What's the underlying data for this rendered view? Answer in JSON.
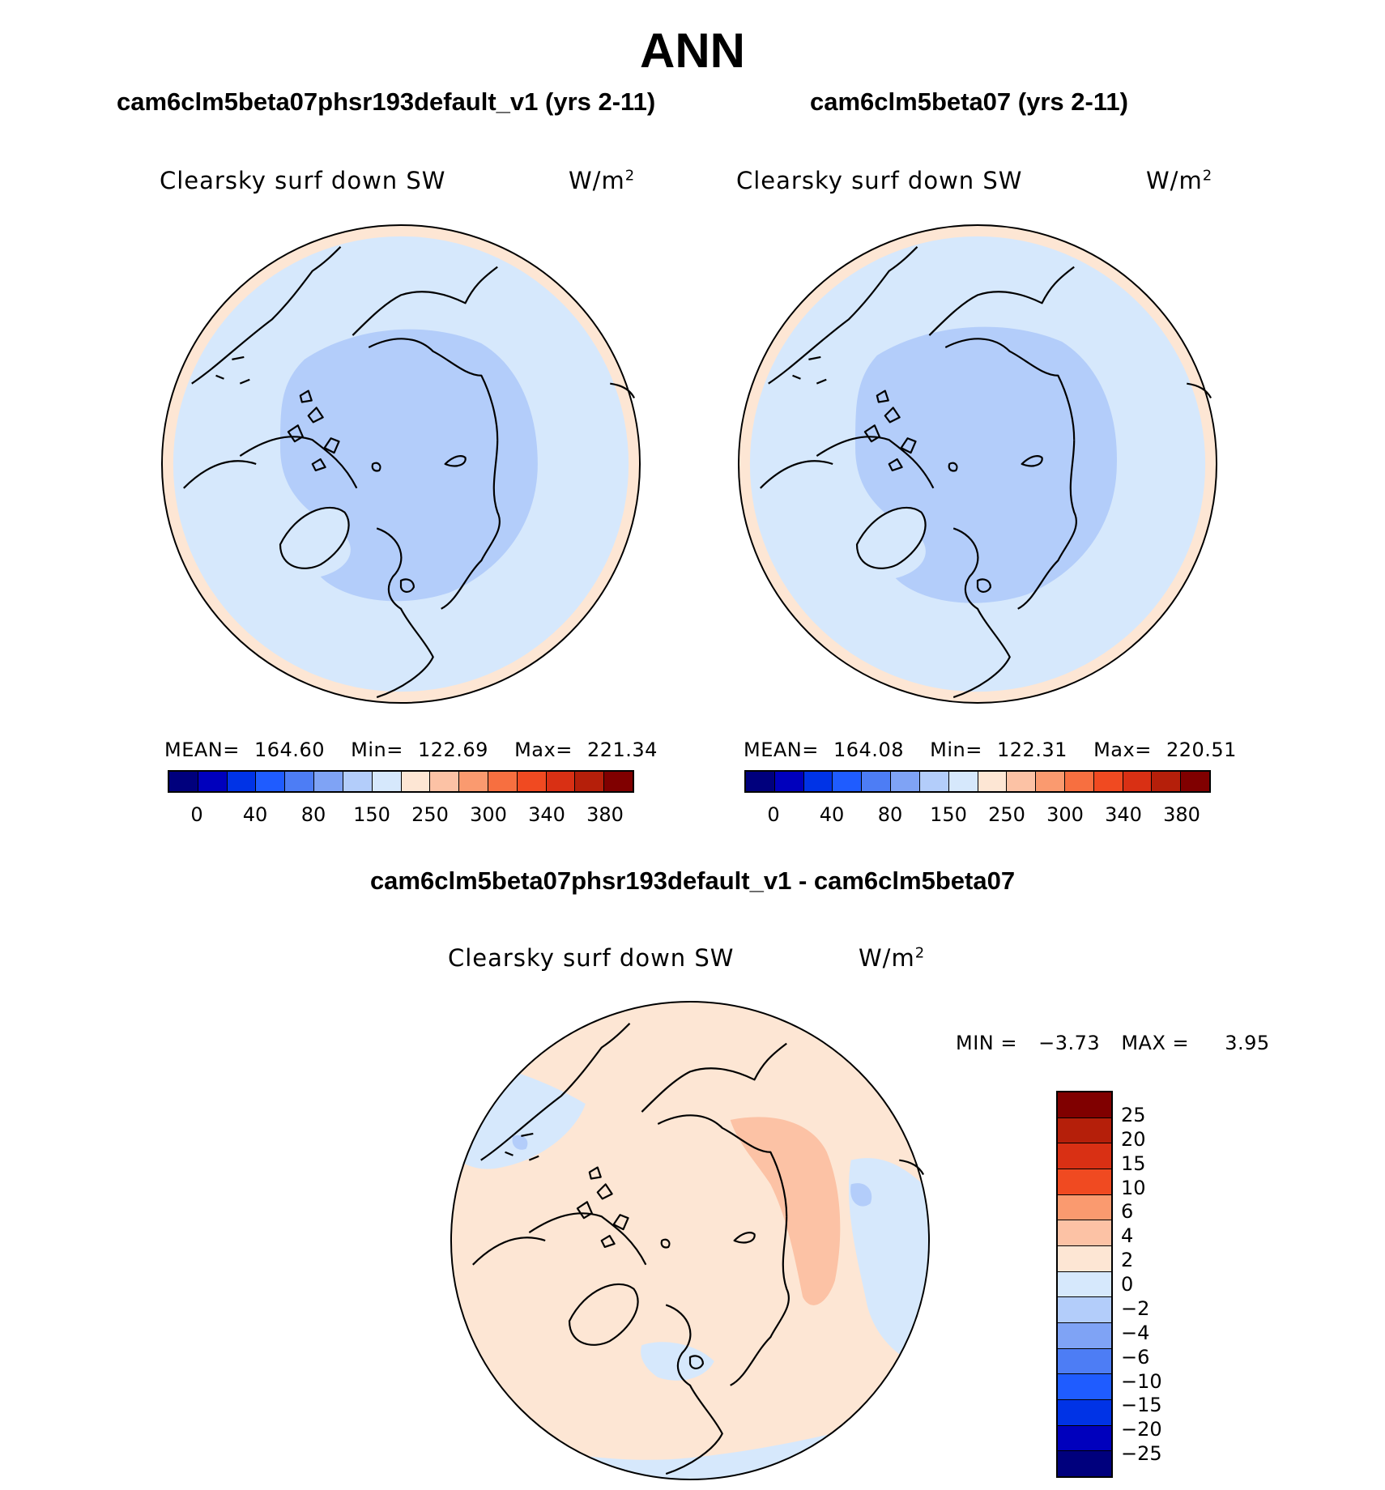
{
  "title": "ANN",
  "colors": {
    "abs_scale": [
      "#00007d",
      "#0000bd",
      "#0033e6",
      "#1f5cff",
      "#4d7df5",
      "#7fa3f5",
      "#b3cdfa",
      "#d6e8fc",
      "#fde6d4",
      "#fcc2a5",
      "#fa9a6f",
      "#f76f40",
      "#f04a21",
      "#d93014",
      "#b51f0a",
      "#800000"
    ],
    "diff_scale": [
      "#800000",
      "#b51f0a",
      "#d93014",
      "#f04a21",
      "#fa9a6f",
      "#fcc2a5",
      "#fde6d4",
      "#d6e8fc",
      "#b3cdfa",
      "#7fa3f5",
      "#4d7df5",
      "#1f5cff",
      "#0033e6",
      "#0000bd",
      "#00007d"
    ],
    "ocean_light": "#d6e8fc",
    "ocean_mid": "#b3cdfa",
    "warm_light": "#fde6d4",
    "warm_mid": "#fcc2a5"
  },
  "panels": [
    {
      "case_title": "cam6clm5beta07phsr193default_v1 (yrs 2-11)",
      "var_label": "Clearsky surf down SW",
      "unit": "W/m",
      "unit_exp": "2",
      "mean_label": "MEAN=",
      "mean_value": "164.60",
      "min_label": "Min=",
      "min_value": "122.69",
      "max_label": "Max=",
      "max_value": "221.34",
      "ticks": [
        "0",
        "40",
        "80",
        "150",
        "250",
        "300",
        "340",
        "380"
      ]
    },
    {
      "case_title": "cam6clm5beta07 (yrs 2-11)",
      "var_label": "Clearsky surf down SW",
      "unit": "W/m",
      "unit_exp": "2",
      "mean_label": "MEAN=",
      "mean_value": "164.08",
      "min_label": "Min=",
      "min_value": "122.31",
      "max_label": "Max=",
      "max_value": "220.51",
      "ticks": [
        "0",
        "40",
        "80",
        "150",
        "250",
        "300",
        "340",
        "380"
      ]
    }
  ],
  "diff": {
    "title": "cam6clm5beta07phsr193default_v1 - cam6clm5beta07",
    "var_label": "Clearsky surf down SW",
    "unit": "W/m",
    "unit_exp": "2",
    "min_label": "MIN =",
    "min_value": "−3.73",
    "max_label": "MAX =",
    "max_value": "3.95",
    "ticks": [
      "25",
      "20",
      "15",
      "10",
      "6",
      "4",
      "2",
      "0",
      "−2",
      "−4",
      "−6",
      "−10",
      "−15",
      "−20",
      "−25"
    ]
  },
  "chart_data": [
    {
      "type": "heatmap",
      "projection": "north-polar-stereographic",
      "title": "cam6clm5beta07phsr193default_v1 (yrs 2-11)",
      "variable": "Clearsky surf down SW",
      "units": "W/m2",
      "mean": 164.6,
      "min": 122.69,
      "max": 221.34,
      "contour_levels": [
        0,
        20,
        40,
        60,
        80,
        100,
        150,
        200,
        250,
        275,
        300,
        320,
        340,
        360,
        380
      ],
      "colorbar_tick_labels": [
        "0",
        "40",
        "80",
        "150",
        "250",
        "300",
        "340",
        "380"
      ]
    },
    {
      "type": "heatmap",
      "projection": "north-polar-stereographic",
      "title": "cam6clm5beta07 (yrs 2-11)",
      "variable": "Clearsky surf down SW",
      "units": "W/m2",
      "mean": 164.08,
      "min": 122.31,
      "max": 220.51,
      "contour_levels": [
        0,
        20,
        40,
        60,
        80,
        100,
        150,
        200,
        250,
        275,
        300,
        320,
        340,
        360,
        380
      ],
      "colorbar_tick_labels": [
        "0",
        "40",
        "80",
        "150",
        "250",
        "300",
        "340",
        "380"
      ]
    },
    {
      "type": "heatmap",
      "projection": "north-polar-stereographic",
      "title": "cam6clm5beta07phsr193default_v1 - cam6clm5beta07",
      "variable": "Clearsky surf down SW",
      "units": "W/m2",
      "min": -3.73,
      "max": 3.95,
      "contour_levels": [
        -25,
        -20,
        -15,
        -10,
        -6,
        -4,
        -2,
        0,
        2,
        4,
        6,
        10,
        15,
        20,
        25
      ]
    }
  ]
}
